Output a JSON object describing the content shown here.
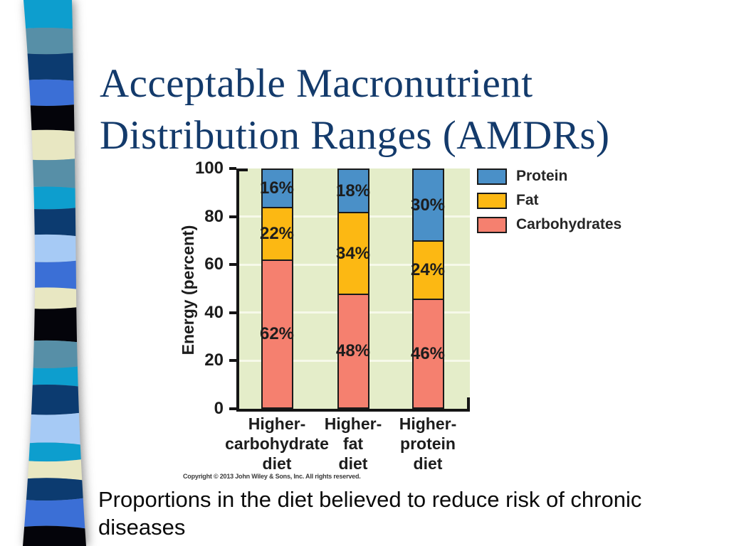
{
  "slide": {
    "title": "Acceptable Macronutrient Distribution Ranges (AMDRs)",
    "title_color": "#133A6B",
    "caption": "Proportions in the diet believed to reduce risk of chronic diseases"
  },
  "chart_data": {
    "type": "bar",
    "stacked": true,
    "categories": [
      [
        "Higher-",
        "carbohydrate",
        "diet"
      ],
      [
        "Higher-",
        "fat",
        "diet"
      ],
      [
        "Higher-",
        "protein",
        "diet"
      ]
    ],
    "series": [
      {
        "name": "Carbohydrates",
        "color": "#F5806F",
        "values": [
          62,
          48,
          46
        ]
      },
      {
        "name": "Fat",
        "color": "#FCB813",
        "values": [
          22,
          34,
          24
        ]
      },
      {
        "name": "Protein",
        "color": "#4A90C8",
        "values": [
          16,
          18,
          30
        ]
      }
    ],
    "stack_order": "bottom_to_top",
    "data_label_format": "percent",
    "legend": [
      "Protein",
      "Fat",
      "Carbohydrates"
    ],
    "legend_position": "top_right",
    "title": "",
    "xlabel": "",
    "ylabel": "Energy (percent)",
    "ylim": [
      0,
      100
    ],
    "yticks": [
      0,
      20,
      40,
      60,
      80,
      100
    ],
    "grid": "horizontal_white_lines",
    "plot_bg_color": "#E4EDC9",
    "gridline_color": "#F6F9E9",
    "bar_outline_color": "#1A1A1A",
    "axis_color": "#151515",
    "copyright": "Copyright © 2013 John Wiley & Sons, Inc. All rights reserved."
  },
  "decor": {
    "ribbon_stripe_colors": [
      "#0D9ECE",
      "#578FA7",
      "#0C3B70",
      "#3B6FD6",
      "#04040A",
      "#E8E7C2",
      "#578FA7",
      "#0D9ECE",
      "#0C3B70",
      "#A6CAF5",
      "#3B6FD6",
      "#E8E7C2",
      "#04040A",
      "#578FA7",
      "#0D9ECE",
      "#0C3B70",
      "#A6CAF5",
      "#0D9ECE",
      "#E8E7C2",
      "#0C3B70",
      "#3B6FD6",
      "#04040A"
    ],
    "ribbon_stripe_weights": [
      44,
      42,
      40,
      42,
      38,
      48,
      42,
      36,
      40,
      44,
      40,
      34,
      50,
      44,
      26,
      48,
      44,
      30,
      26,
      36,
      40,
      32
    ],
    "ribbon_shadow_color": "#8D8D8D"
  }
}
